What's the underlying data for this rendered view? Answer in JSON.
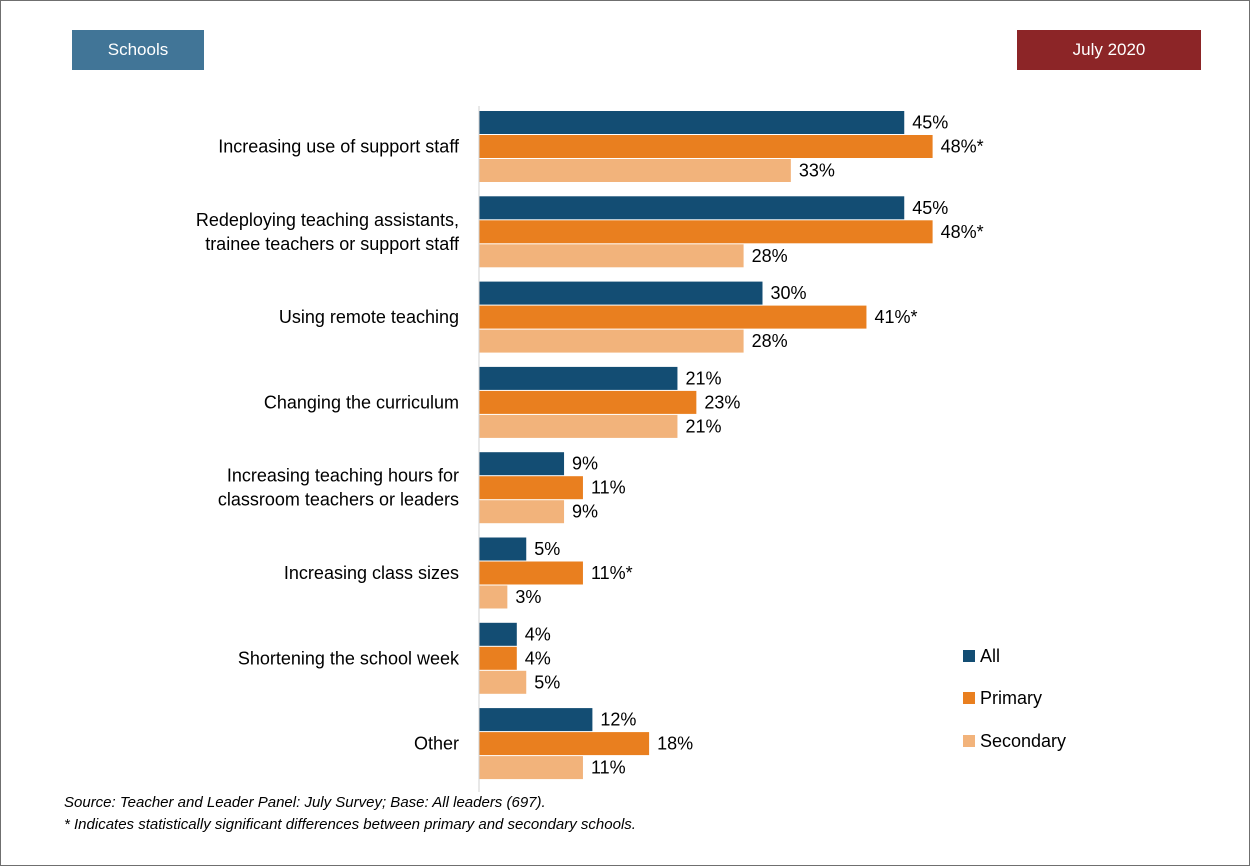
{
  "header": {
    "left_tag": "Schools",
    "right_tag": "July 2020"
  },
  "colors": {
    "tag_left": "#417597",
    "tag_right": "#8c2527",
    "all": "#134d73",
    "primary": "#e97f1f",
    "secondary": "#f2b37b"
  },
  "chart_data": {
    "type": "bar",
    "orientation": "horizontal",
    "categories": [
      [
        "Increasing use of support staff"
      ],
      [
        "Redeploying teaching assistants,",
        "trainee teachers or support staff"
      ],
      [
        "Using remote teaching"
      ],
      [
        "Changing the curriculum"
      ],
      [
        "Increasing teaching hours for",
        "classroom teachers or leaders"
      ],
      [
        "Increasing class sizes"
      ],
      [
        "Shortening the school week"
      ],
      [
        "Other"
      ]
    ],
    "series": [
      {
        "name": "All",
        "values": [
          45,
          45,
          30,
          21,
          9,
          5,
          4,
          12
        ],
        "labels": [
          "45%",
          "45%",
          "30%",
          "21%",
          "9%",
          "5%",
          "4%",
          "12%"
        ]
      },
      {
        "name": "Primary",
        "values": [
          48,
          48,
          41,
          23,
          11,
          11,
          4,
          18
        ],
        "labels": [
          "48%*",
          "48%*",
          "41%*",
          "23%",
          "11%",
          "11%*",
          "4%",
          "18%"
        ]
      },
      {
        "name": "Secondary",
        "values": [
          33,
          28,
          28,
          21,
          9,
          3,
          5,
          11
        ],
        "labels": [
          "33%",
          "28%",
          "28%",
          "21%",
          "9%",
          "3%",
          "5%",
          "11%"
        ]
      }
    ],
    "xlim": [
      0,
      50
    ],
    "grid": false,
    "legend_position": "right"
  },
  "footnotes": {
    "source": "Source: Teacher and Leader Panel: July Survey; Base: All leaders (697).",
    "note": "* Indicates statistically significant differences between primary and secondary schools."
  }
}
